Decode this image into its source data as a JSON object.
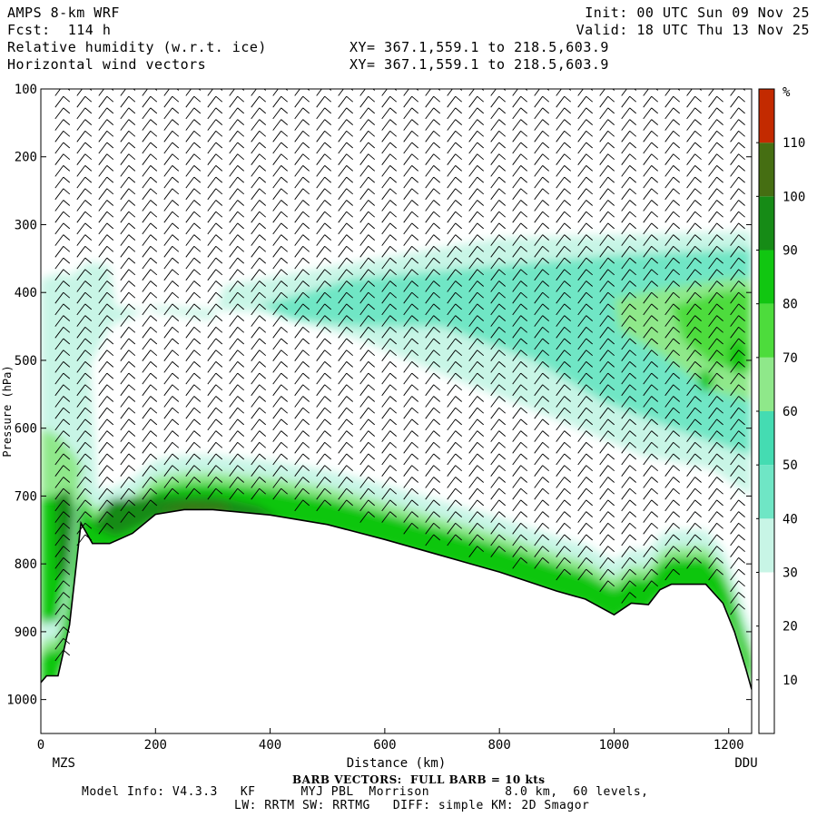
{
  "header": {
    "model": "AMPS 8-km WRF",
    "init": "Init: 00 UTC Sun 09 Nov 25",
    "fcst": "Fcst:  114 h",
    "valid": "Valid: 18 UTC Thu 13 Nov 25",
    "field1": "Relative humidity (w.r.t. ice)",
    "xy1": "XY= 367.1,559.1 to 218.5,603.9",
    "field2": "Horizontal wind vectors",
    "xy2": "XY= 367.1,559.1 to 218.5,603.9"
  },
  "footer": {
    "barb_note": "BARB VECTORS:  FULL BARB = 10 kts",
    "model_info": "Model Info: V4.3.3   KF      MYJ PBL  Morrison          8.0 km,  60 levels,",
    "physics": "LW: RRTM SW: RRTMG   DIFF: simple KM: 2D Smagor"
  },
  "chart_data": {
    "type": "heatmap",
    "title": "Relative humidity (w.r.t. ice) cross-section with horizontal wind barbs",
    "xlabel": "Distance (km)",
    "ylabel": "Pressure (hPa)",
    "xlim": [
      0,
      1240
    ],
    "ylim": [
      1050,
      100
    ],
    "x_ticks": [
      0,
      200,
      400,
      600,
      800,
      1000,
      1200
    ],
    "y_ticks": [
      100,
      200,
      300,
      400,
      500,
      600,
      700,
      800,
      900,
      1000
    ],
    "start_label": "MZS",
    "end_label": "DDU",
    "colorbar": {
      "unit": "%",
      "labels": [
        10,
        20,
        30,
        40,
        50,
        60,
        70,
        80,
        90,
        100,
        110
      ],
      "colors": [
        "#ffffff",
        "#ffffff",
        "#ffffff",
        "#c8f5e6",
        "#6fe6c5",
        "#44dcb2",
        "#8fe88a",
        "#4ddc3c",
        "#11c611",
        "#168b16",
        "#456e12",
        "#c32a00"
      ]
    },
    "terrain": {
      "x_km": [
        0,
        10,
        30,
        50,
        70,
        90,
        120,
        160,
        200,
        250,
        300,
        400,
        500,
        600,
        700,
        800,
        900,
        950,
        1000,
        1030,
        1060,
        1080,
        1100,
        1130,
        1160,
        1190,
        1210,
        1230,
        1240
      ],
      "p_hpa": [
        975,
        965,
        965,
        890,
        740,
        770,
        770,
        755,
        727,
        720,
        720,
        728,
        742,
        764,
        788,
        812,
        840,
        852,
        875,
        858,
        860,
        838,
        830,
        830,
        830,
        858,
        900,
        955,
        985
      ]
    },
    "rh_regions": [
      {
        "name": "upper moist band",
        "x_range_km": [
          300,
          1240
        ],
        "p_range_hpa": [
          390,
          640
        ],
        "rh_range_pct": [
          30,
          80
        ]
      },
      {
        "name": "near-surface moist layer",
        "x_range_km": [
          0,
          1240
        ],
        "p_range_hpa": [
          690,
          980
        ],
        "rh_range_pct": [
          40,
          110
        ]
      },
      {
        "name": "coastal moist column",
        "x_range_km": [
          0,
          90
        ],
        "p_range_hpa": [
          360,
          980
        ],
        "rh_range_pct": [
          30,
          110
        ]
      }
    ]
  }
}
